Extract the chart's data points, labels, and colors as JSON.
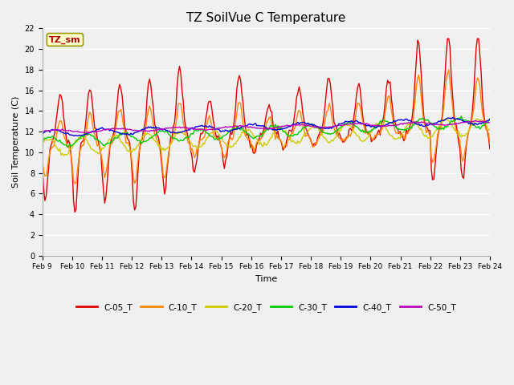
{
  "title": "TZ SoilVue C Temperature",
  "xlabel": "Time",
  "ylabel": "Soil Temperature (C)",
  "ylim": [
    0,
    22
  ],
  "yticks": [
    0,
    2,
    4,
    6,
    8,
    10,
    12,
    14,
    16,
    18,
    20,
    22
  ],
  "bg_color": "#f0f0f0",
  "plot_bg_color": "#f0f0f0",
  "series_colors": {
    "C-05_T": "#dd0000",
    "C-10_T": "#ff8800",
    "C-20_T": "#cccc00",
    "C-30_T": "#00cc00",
    "C-40_T": "#0000dd",
    "C-50_T": "#bb00bb"
  },
  "xtick_labels": [
    "Feb 9",
    "Feb 10",
    "Feb 11",
    "Feb 12",
    "Feb 13",
    "Feb 14",
    "Feb 15",
    "Feb 16",
    "Feb 17",
    "Feb 18",
    "Feb 19",
    "Feb 20",
    "Feb 21",
    "Feb 22",
    "Feb 23",
    "Feb 24"
  ],
  "annotation_text": "TZ_sm",
  "annotation_color": "#aa0000",
  "annotation_bg": "#ffffcc",
  "annotation_border": "#999900",
  "figsize": [
    6.4,
    4.8
  ],
  "dpi": 100
}
